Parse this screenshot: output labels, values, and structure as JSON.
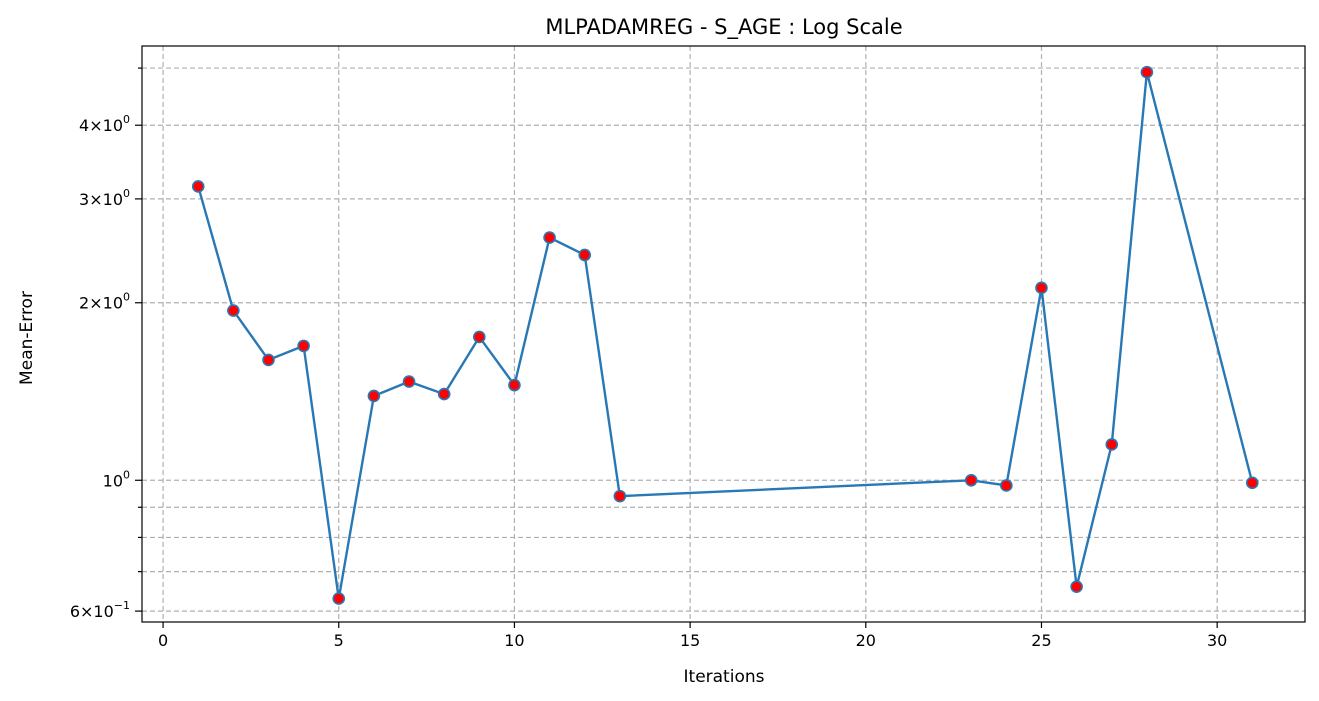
{
  "chart_data": {
    "type": "line",
    "title": "MLPADAMREG - S_AGE : Log Scale",
    "xlabel": "Iterations",
    "ylabel": "Mean-Error",
    "yscale": "log",
    "xlim": [
      -0.6,
      32.5
    ],
    "ylim": [
      0.575,
      5.45
    ],
    "grid": true,
    "line_color": "#2878b5",
    "marker_face_color": "#ff0000",
    "marker_edge_color": "#2878b5",
    "x_ticks": [
      0,
      5,
      10,
      15,
      20,
      25,
      30
    ],
    "x_tick_labels": [
      "0",
      "5",
      "10",
      "15",
      "20",
      "25",
      "30"
    ],
    "y_major_ticks": [
      0.6,
      1,
      2,
      3,
      4
    ],
    "y_minor_ticks": [
      0.7,
      0.8,
      0.9,
      5
    ],
    "y_tick_labels": [
      {
        "mantissa": "6",
        "exponent": "−1"
      },
      {
        "mantissa": "",
        "exponent": "0"
      },
      {
        "mantissa": "2",
        "exponent": "0"
      },
      {
        "mantissa": "3",
        "exponent": "0"
      },
      {
        "mantissa": "4",
        "exponent": "0"
      }
    ],
    "series": [
      {
        "x": [
          1,
          2,
          3,
          4,
          5,
          6,
          7,
          8,
          9,
          10,
          11,
          12,
          13,
          23,
          24,
          25,
          26,
          27,
          28,
          31
        ],
        "values": [
          3.15,
          1.94,
          1.6,
          1.69,
          0.63,
          1.39,
          1.47,
          1.4,
          1.75,
          1.45,
          2.58,
          2.41,
          0.94,
          1.0,
          0.98,
          2.12,
          0.66,
          1.15,
          4.92,
          0.99
        ]
      }
    ]
  }
}
